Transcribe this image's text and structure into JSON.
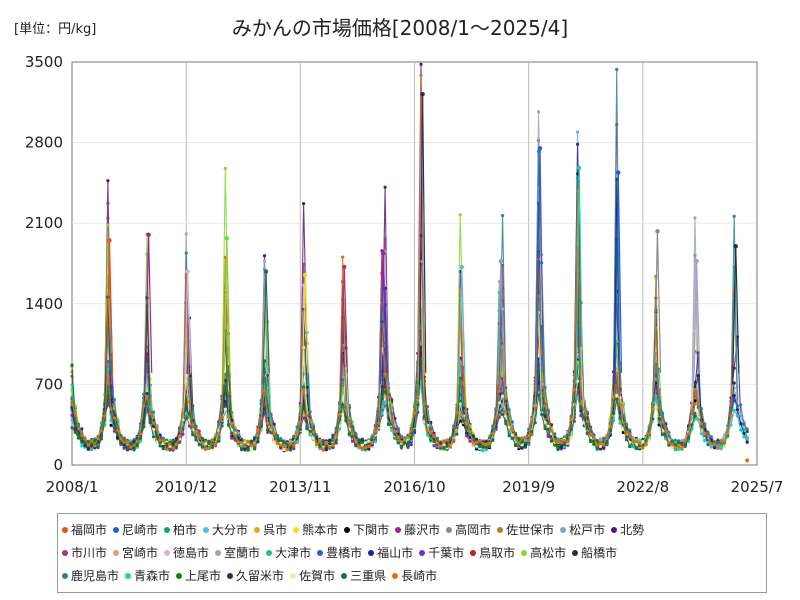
{
  "unit_label": "[単位：円/kg]",
  "chart_data": {
    "type": "line",
    "title": "みかんの市場価格[2008/1～2025/4]",
    "xlabel": "",
    "ylabel": "",
    "ylim": [
      0,
      3500
    ],
    "y_ticks": [
      "0",
      "700",
      "1400",
      "2100",
      "2800",
      "3500"
    ],
    "x_ticks": [
      "2008/1",
      "2010/12",
      "2013/11",
      "2016/10",
      "2019/9",
      "2022/8",
      "2025/7"
    ],
    "x_tick_values": [
      2008.0,
      2010.917,
      2013.833,
      2016.75,
      2019.667,
      2022.583,
      2025.5
    ],
    "xlim": [
      2008.0,
      2025.5
    ],
    "season_peaks": [
      {
        "year": 2008,
        "peak": 1950
      },
      {
        "year": 2009,
        "peak": 2000
      },
      {
        "year": 2010,
        "peak": 1680
      },
      {
        "year": 2011,
        "peak": 1970
      },
      {
        "year": 2012,
        "peak": 1680
      },
      {
        "year": 2013,
        "peak": 1650
      },
      {
        "year": 2014,
        "peak": 1720
      },
      {
        "year": 2015,
        "peak": 1840
      },
      {
        "year": 2016,
        "peak": 3220
      },
      {
        "year": 2017,
        "peak": 1720
      },
      {
        "year": 2018,
        "peak": 1770
      },
      {
        "year": 2019,
        "peak": 2750
      },
      {
        "year": 2020,
        "peak": 2580
      },
      {
        "year": 2021,
        "peak": 2540
      },
      {
        "year": 2022,
        "peak": 2030
      },
      {
        "year": 2023,
        "peak": 1770
      },
      {
        "year": 2024,
        "peak": 1900
      }
    ],
    "offseason_low": 130,
    "last_observation": {
      "date": "2025/4",
      "value": 40
    },
    "series": [
      {
        "name": "福岡市",
        "color": "#e8501a"
      },
      {
        "name": "尼崎市",
        "color": "#1a5fe0"
      },
      {
        "name": "柏市",
        "color": "#1aa078"
      },
      {
        "name": "大分市",
        "color": "#5ab8e8"
      },
      {
        "name": "呉市",
        "color": "#e8a81a"
      },
      {
        "name": "熊本市",
        "color": "#f0e01a"
      },
      {
        "name": "下関市",
        "color": "#000000"
      },
      {
        "name": "藤沢市",
        "color": "#a020a0"
      },
      {
        "name": "高岡市",
        "color": "#8a8a8a"
      },
      {
        "name": "佐世保市",
        "color": "#b08030"
      },
      {
        "name": "松戸市",
        "color": "#8aa0b8"
      },
      {
        "name": "北勢",
        "color": "#501a78"
      },
      {
        "name": "市川市",
        "color": "#b0307a"
      },
      {
        "name": "宮崎市",
        "color": "#e0a070"
      },
      {
        "name": "徳島市",
        "color": "#d8b0e8"
      },
      {
        "name": "室蘭市",
        "color": "#a0a0c8"
      },
      {
        "name": "大津市",
        "color": "#20c090"
      },
      {
        "name": "豊橋市",
        "color": "#3060d0"
      },
      {
        "name": "福山市",
        "color": "#2020a0"
      },
      {
        "name": "千葉市",
        "color": "#7030c0"
      },
      {
        "name": "鳥取市",
        "color": "#c02020"
      },
      {
        "name": "高松市",
        "color": "#80d830"
      },
      {
        "name": "船橋市",
        "color": "#20304a"
      },
      {
        "name": "鹿児島市",
        "color": "#308090"
      },
      {
        "name": "青森市",
        "color": "#20d0b0"
      },
      {
        "name": "上尾市",
        "color": "#108010"
      },
      {
        "name": "久留米市",
        "color": "#203070"
      },
      {
        "name": "佐賀市",
        "color": "#e0f0b0"
      },
      {
        "name": "三重県",
        "color": "#207040"
      },
      {
        "name": "長崎市",
        "color": "#e07010"
      }
    ]
  }
}
